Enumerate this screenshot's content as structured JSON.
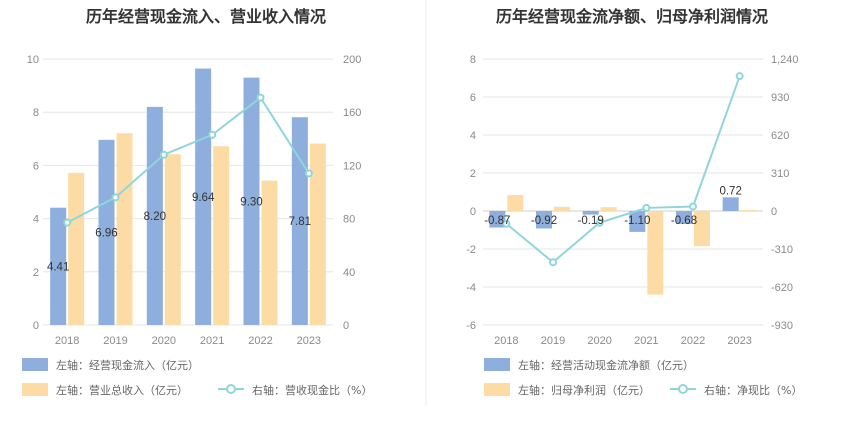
{
  "chart_data": [
    {
      "type": "bar",
      "title": "历年经营现金流入、营业收入情况",
      "categories": [
        "2018",
        "2019",
        "2020",
        "2021",
        "2022",
        "2023"
      ],
      "left_axis": {
        "ylim": [
          0,
          10
        ],
        "ticks": [
          "0",
          "2",
          "4",
          "6",
          "8",
          "10"
        ]
      },
      "right_axis": {
        "ylim": [
          0,
          200
        ],
        "ticks": [
          "0",
          "40",
          "80",
          "120",
          "160",
          "200"
        ]
      },
      "series": [
        {
          "name": "左轴：经营现金流入（亿元）",
          "type": "bar",
          "axis": "left",
          "color": "#8eaedd",
          "values": [
            4.41,
            6.96,
            8.2,
            9.64,
            9.3,
            7.81
          ],
          "labels": [
            "4.41",
            "6.96",
            "8.20",
            "9.64",
            "9.30",
            "7.81"
          ]
        },
        {
          "name": "左轴：营业总收入（亿元）",
          "type": "bar",
          "axis": "left",
          "color": "#fcdba4",
          "values": [
            5.72,
            7.21,
            6.42,
            6.72,
            5.43,
            6.82
          ]
        },
        {
          "name": "右轴：营收现金比（%）",
          "type": "line",
          "axis": "right",
          "color": "#8fd6dc",
          "values": [
            77,
            96,
            128,
            143,
            171,
            114
          ]
        }
      ]
    },
    {
      "type": "bar",
      "title": "历年经营现金流净额、归母净利润情况",
      "categories": [
        "2018",
        "2019",
        "2020",
        "2021",
        "2022",
        "2023"
      ],
      "left_axis": {
        "ylim": [
          -6,
          8
        ],
        "ticks": [
          "-6",
          "-4",
          "-2",
          "0",
          "2",
          "4",
          "6",
          "8"
        ]
      },
      "right_axis": {
        "ylim": [
          -930,
          1240
        ],
        "ticks": [
          "-930",
          "-620",
          "-310",
          "0",
          "310",
          "620",
          "930",
          "1,240"
        ]
      },
      "series": [
        {
          "name": "左轴：经营活动现金流净额（亿元）",
          "type": "bar",
          "axis": "left",
          "color": "#8eaedd",
          "values": [
            -0.87,
            -0.92,
            -0.19,
            -1.1,
            -0.68,
            0.72
          ],
          "labels": [
            "-0.87",
            "-0.92",
            "-0.19",
            "-1.10",
            "-0.68",
            "0.72"
          ]
        },
        {
          "name": "左轴：归母净利润（亿元）",
          "type": "bar",
          "axis": "left",
          "color": "#fcdba4",
          "values": [
            0.84,
            0.22,
            0.2,
            -4.4,
            -1.85,
            0.05
          ]
        },
        {
          "name": "右轴：净现比（%）",
          "type": "line",
          "axis": "right",
          "color": "#8fd6dc",
          "values": [
            -104,
            -418,
            -95,
            25,
            37,
            1100
          ]
        }
      ]
    }
  ]
}
